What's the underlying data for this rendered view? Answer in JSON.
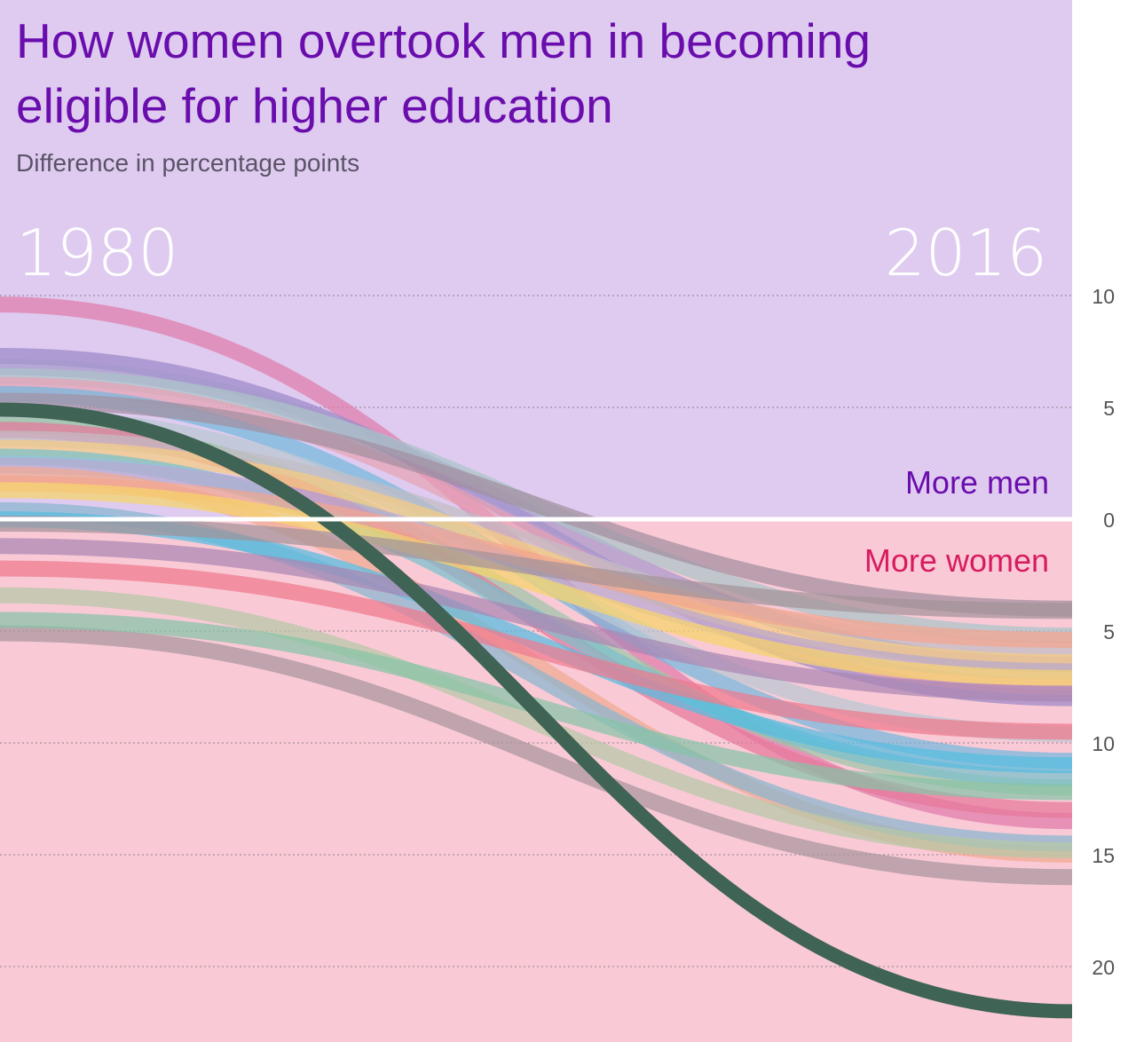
{
  "chart_data": {
    "type": "line",
    "title": "How women overtook men in becoming eligible for higher education",
    "subtitle": "Difference in percentage points",
    "x": [
      1980,
      2016
    ],
    "x_labels": [
      "1980",
      "2016"
    ],
    "annotations": {
      "above_zero": "More men",
      "below_zero": "More women"
    },
    "y_ticks": [
      {
        "value": 10,
        "label": "10"
      },
      {
        "value": 5,
        "label": "5"
      },
      {
        "value": 0,
        "label": "0"
      },
      {
        "value": -5,
        "label": "5"
      },
      {
        "value": -10,
        "label": "10"
      },
      {
        "value": -15,
        "label": "15"
      },
      {
        "value": -20,
        "label": "20"
      }
    ],
    "ylim": [
      -23,
      10
    ],
    "grid": true,
    "colors": {
      "men_zone": "#dfcbf0",
      "women_zone": "#f9cad6",
      "men_text": "#6a0dad",
      "women_text": "#d81b60",
      "highlight": "#3f6354"
    },
    "series": [
      {
        "values": [
          9.6,
          -13.5
        ],
        "color": "#e07bab"
      },
      {
        "values": [
          7.3,
          -8.0
        ],
        "color": "#9b88c8"
      },
      {
        "values": [
          6.8,
          -6.5
        ],
        "color": "#a699cc"
      },
      {
        "values": [
          6.4,
          -5.2
        ],
        "color": "#aac3c8"
      },
      {
        "values": [
          6.0,
          -7.5
        ],
        "color": "#e6a2b4"
      },
      {
        "values": [
          5.6,
          -10.8
        ],
        "color": "#74b9dc"
      },
      {
        "values": [
          5.3,
          -4.0
        ],
        "color": "#a28fa0"
      },
      {
        "values": [
          4.6,
          -9.6
        ],
        "color": "#b8c8d2"
      },
      {
        "values": [
          4.2,
          -12.0
        ],
        "color": "#9ec5a7"
      },
      {
        "values": [
          4.0,
          -13.0
        ],
        "color": "#e4789a"
      },
      {
        "values": [
          3.6,
          -5.8
        ],
        "color": "#c2bcc4"
      },
      {
        "values": [
          3.2,
          -6.4
        ],
        "color": "#f6cc82"
      },
      {
        "values": [
          2.8,
          -11.6
        ],
        "color": "#79c0cc"
      },
      {
        "values": [
          2.4,
          -6.8
        ],
        "color": "#b8a9d0"
      },
      {
        "values": [
          2.0,
          -15.0
        ],
        "color": "#f0ab90"
      },
      {
        "values": [
          1.6,
          -5.4
        ],
        "color": "#f2a58f"
      },
      {
        "values": [
          1.3,
          -7.1
        ],
        "color": "#f7d46a"
      },
      {
        "values": [
          0.4,
          -14.5
        ],
        "color": "#89b5cf"
      },
      {
        "values": [
          0.0,
          -11.0
        ],
        "color": "#56bcdf"
      },
      {
        "values": [
          -0.2,
          -4.1
        ],
        "color": "#a39398"
      },
      {
        "values": [
          -3.4,
          -14.8
        ],
        "color": "#b5c8a6"
      },
      {
        "values": [
          -5.1,
          -16.0
        ],
        "color": "#a8959d"
      },
      {
        "values": [
          -4.5,
          -12.2
        ],
        "color": "#86c4a6"
      },
      {
        "values": [
          -2.2,
          -9.5
        ],
        "color": "#ee7a8e"
      },
      {
        "values": [
          -1.2,
          -7.8
        ],
        "color": "#ab86b3"
      },
      {
        "values": [
          4.9,
          -22.0
        ],
        "color": "#3f6354",
        "highlight": true
      }
    ]
  }
}
